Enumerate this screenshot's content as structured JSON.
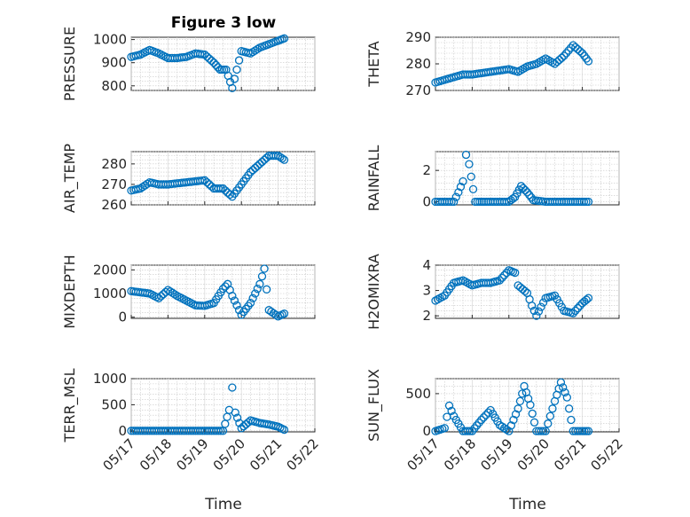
{
  "figure": {
    "title": "Figure 3 low"
  },
  "chart_data": [
    {
      "id": "pressure",
      "type": "scatter",
      "ylabel": "PRESSURE",
      "ylim": [
        780,
        1010
      ],
      "yticks": [
        800,
        900,
        1000
      ],
      "x": [
        "05/17 00:00",
        "05/17 06:00",
        "05/17 12:00",
        "05/17 18:00",
        "05/18 00:00",
        "05/18 06:00",
        "05/18 12:00",
        "05/18 18:00",
        "05/19 00:00",
        "05/19 06:00",
        "05/19 10:00",
        "05/19 14:00",
        "05/19 18:00",
        "05/20 00:00",
        "05/20 06:00",
        "05/20 12:00",
        "05/20 18:00",
        "05/21 00:00",
        "05/21 04:00"
      ],
      "y": [
        925,
        935,
        955,
        940,
        920,
        920,
        925,
        940,
        935,
        900,
        870,
        870,
        790,
        950,
        940,
        965,
        980,
        995,
        1005
      ]
    },
    {
      "id": "theta",
      "type": "scatter",
      "ylabel": "THETA",
      "ylim": [
        270,
        290
      ],
      "yticks": [
        270,
        280,
        290
      ],
      "x": [
        "05/17 00:00",
        "05/17 06:00",
        "05/17 12:00",
        "05/17 18:00",
        "05/18 00:00",
        "05/18 12:00",
        "05/19 00:00",
        "05/19 06:00",
        "05/19 12:00",
        "05/19 18:00",
        "05/20 00:00",
        "05/20 06:00",
        "05/20 12:00",
        "05/20 18:00",
        "05/21 00:00",
        "05/21 04:00"
      ],
      "y": [
        273,
        274,
        275,
        276,
        276,
        277,
        278,
        277,
        279,
        280,
        282,
        280,
        283,
        287,
        284,
        281
      ]
    },
    {
      "id": "air_temp",
      "type": "scatter",
      "ylabel": "AIR_TEMP",
      "ylim": [
        260,
        286
      ],
      "yticks": [
        260,
        270,
        280
      ],
      "x": [
        "05/17 00:00",
        "05/17 06:00",
        "05/17 12:00",
        "05/17 18:00",
        "05/18 00:00",
        "05/18 12:00",
        "05/19 00:00",
        "05/19 06:00",
        "05/19 12:00",
        "05/19 18:00",
        "05/20 00:00",
        "05/20 06:00",
        "05/20 12:00",
        "05/20 18:00",
        "05/21 00:00",
        "05/21 04:00"
      ],
      "y": [
        267,
        268,
        271,
        270,
        270,
        271,
        272,
        268,
        268,
        264,
        270,
        276,
        280,
        284,
        284,
        282
      ]
    },
    {
      "id": "rainfall",
      "type": "scatter",
      "ylabel": "RAINFALL",
      "ylim": [
        -0.2,
        3.2
      ],
      "yticks": [
        0,
        2
      ],
      "x": [
        "05/17 00:00",
        "05/17 12:00",
        "05/17 15:00",
        "05/17 18:00",
        "05/17 20:00",
        "05/17 22:00",
        "05/18 02:00",
        "05/18 12:00",
        "05/19 00:00",
        "05/19 04:00",
        "05/19 08:00",
        "05/19 12:00",
        "05/19 16:00",
        "05/20 00:00",
        "05/20 12:00",
        "05/21 04:00"
      ],
      "y": [
        0,
        0,
        0.6,
        1.3,
        3.0,
        2.4,
        0,
        0,
        0,
        0.3,
        1.0,
        0.6,
        0.1,
        0,
        0,
        0
      ]
    },
    {
      "id": "mixdepth",
      "type": "scatter",
      "ylabel": "MIXDEPTH",
      "ylim": [
        -50,
        2200
      ],
      "yticks": [
        0,
        1000,
        2000
      ],
      "x": [
        "05/17 00:00",
        "05/17 06:00",
        "05/17 12:00",
        "05/17 18:00",
        "05/18 00:00",
        "05/18 06:00",
        "05/18 12:00",
        "05/18 18:00",
        "05/19 00:00",
        "05/19 06:00",
        "05/19 12:00",
        "05/19 15:00",
        "05/19 18:00",
        "05/20 00:00",
        "05/20 06:00",
        "05/20 12:00",
        "05/20 15:00",
        "05/20 18:00",
        "05/21 00:00",
        "05/21 04:00"
      ],
      "y": [
        1100,
        1050,
        1000,
        800,
        1150,
        900,
        700,
        500,
        480,
        600,
        1200,
        1400,
        900,
        100,
        600,
        1400,
        2050,
        300,
        30,
        150
      ]
    },
    {
      "id": "h2omixra",
      "type": "scatter",
      "ylabel": "H2OMIXRA",
      "ylim": [
        1.9,
        4
      ],
      "yticks": [
        2,
        3,
        4
      ],
      "x": [
        "05/17 00:00",
        "05/17 06:00",
        "05/17 12:00",
        "05/17 18:00",
        "05/18 00:00",
        "05/18 06:00",
        "05/18 12:00",
        "05/18 18:00",
        "05/19 00:00",
        "05/19 04:00",
        "05/19 06:00",
        "05/19 12:00",
        "05/19 15:00",
        "05/19 18:00",
        "05/20 00:00",
        "05/20 06:00",
        "05/20 12:00",
        "05/20 18:00",
        "05/21 00:00",
        "05/21 04:00"
      ],
      "y": [
        2.6,
        2.8,
        3.3,
        3.4,
        3.2,
        3.3,
        3.3,
        3.4,
        3.8,
        3.7,
        3.2,
        2.9,
        2.4,
        2.0,
        2.7,
        2.8,
        2.2,
        2.1,
        2.5,
        2.7
      ]
    },
    {
      "id": "terr_msl",
      "type": "scatter",
      "ylabel": "TERR_MSL",
      "ylim": [
        -20,
        1000
      ],
      "yticks": [
        0,
        500,
        1000
      ],
      "x": [
        "05/17 00:00",
        "05/17 12:00",
        "05/18 00:00",
        "05/18 12:00",
        "05/19 00:00",
        "05/19 12:00",
        "05/19 16:00",
        "05/19 18:00",
        "05/19 20:00",
        "05/20 00:00",
        "05/20 06:00",
        "05/20 12:00",
        "05/20 18:00",
        "05/21 00:00",
        "05/21 04:00"
      ],
      "y": [
        0,
        0,
        0,
        0,
        0,
        0,
        400,
        830,
        350,
        50,
        200,
        150,
        120,
        80,
        20
      ]
    },
    {
      "id": "sun_flux",
      "type": "scatter",
      "ylabel": "SUN_FLUX",
      "ylim": [
        -10,
        700
      ],
      "yticks": [
        0,
        500
      ],
      "x": [
        "05/17 00:00",
        "05/17 06:00",
        "05/17 09:00",
        "05/17 12:00",
        "05/17 18:00",
        "05/18 00:00",
        "05/18 06:00",
        "05/18 12:00",
        "05/18 18:00",
        "05/19 00:00",
        "05/19 06:00",
        "05/19 10:00",
        "05/19 14:00",
        "05/19 18:00",
        "05/20 00:00",
        "05/20 06:00",
        "05/20 10:00",
        "05/20 14:00",
        "05/20 18:00",
        "05/21 00:00",
        "05/21 04:00"
      ],
      "y": [
        0,
        40,
        340,
        200,
        0,
        0,
        150,
        280,
        80,
        0,
        300,
        600,
        350,
        0,
        0,
        400,
        650,
        450,
        0,
        0,
        0
      ]
    }
  ],
  "xaxis": {
    "label": "Time",
    "ticks": [
      "05/17",
      "05/18",
      "05/19",
      "05/20",
      "05/21",
      "05/22"
    ],
    "range": [
      "05/17 00:00",
      "05/22 00:00"
    ]
  },
  "colors": {
    "marker": "#0072BD",
    "axes": "#262626"
  }
}
